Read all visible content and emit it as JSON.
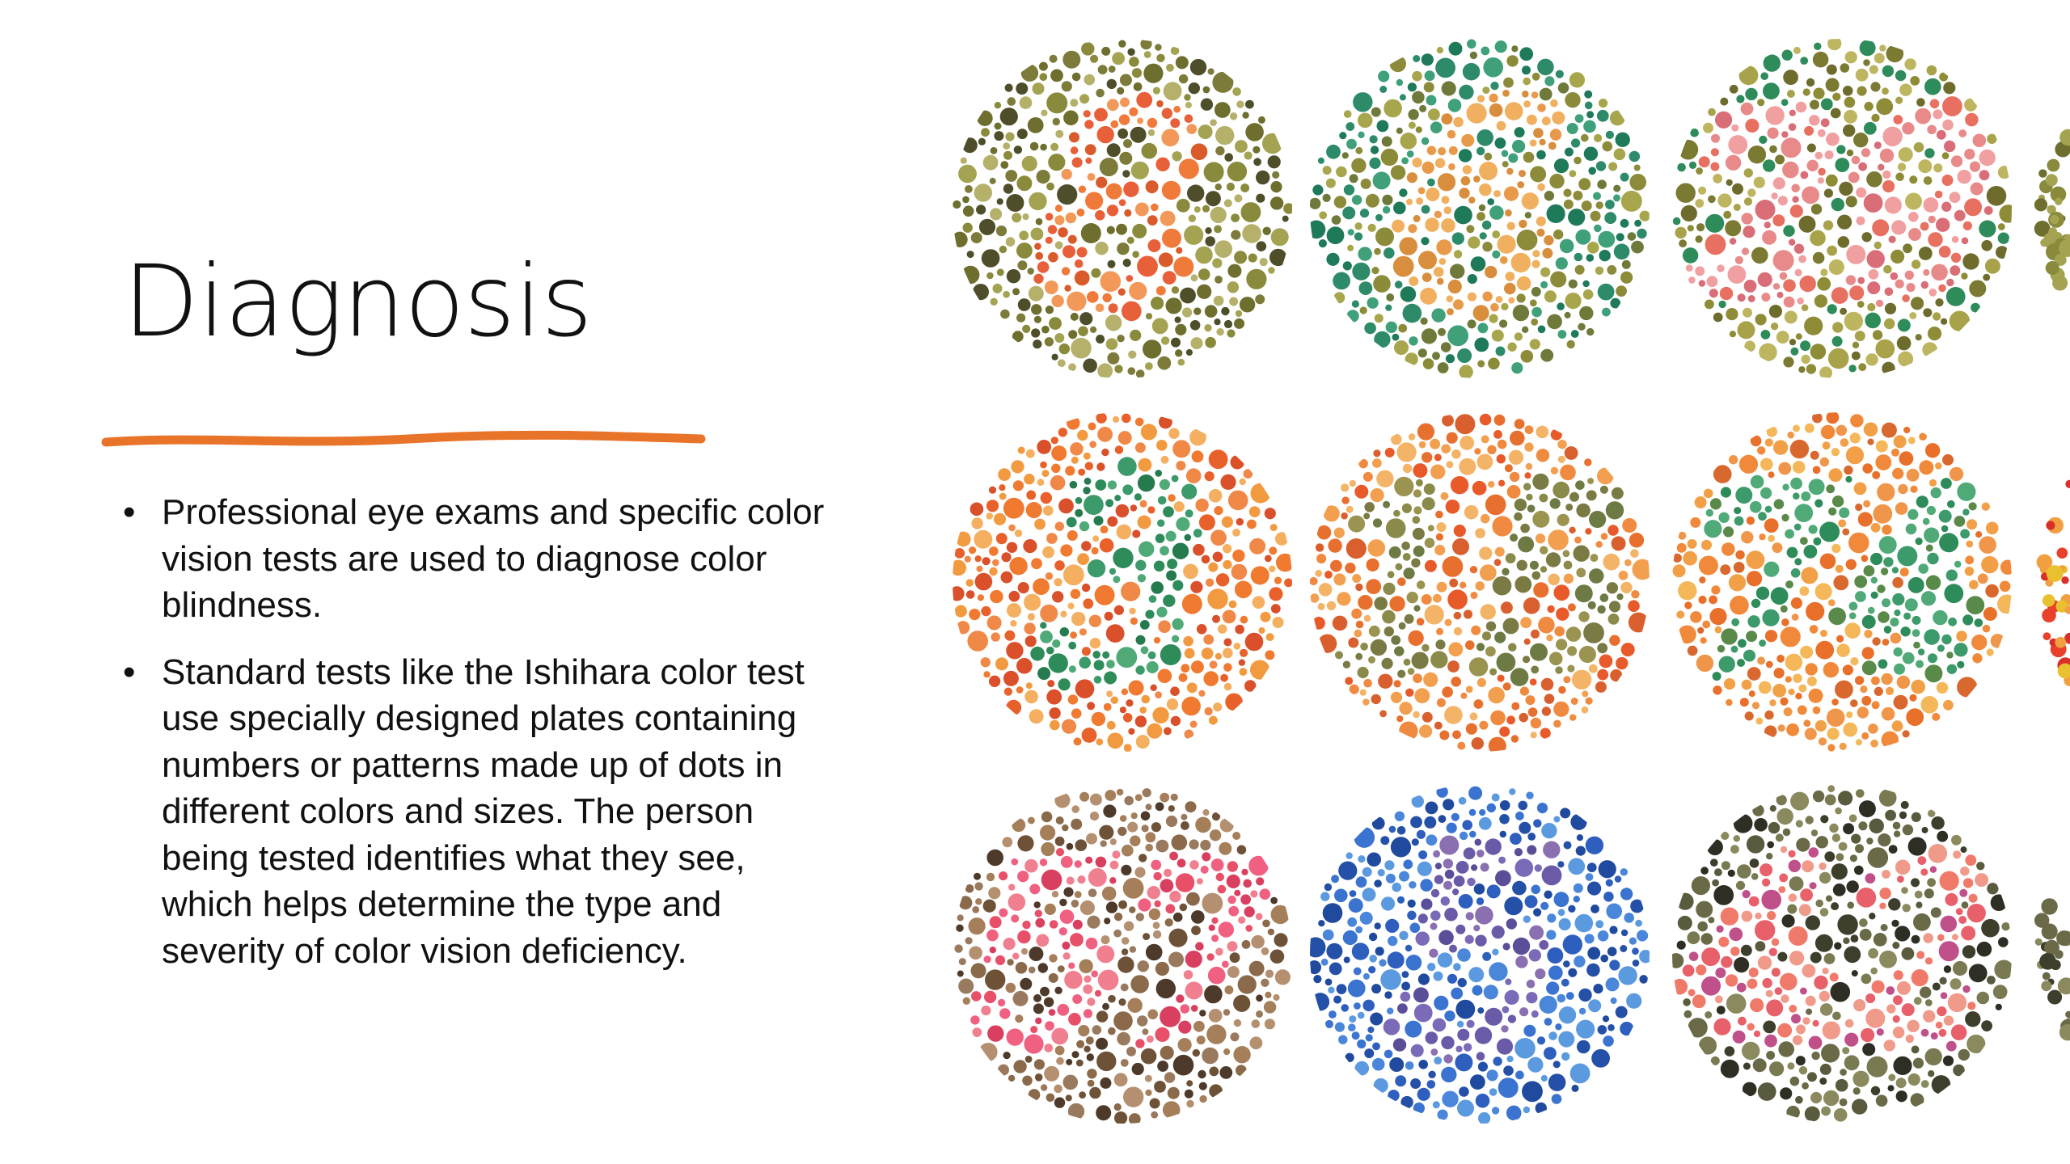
{
  "slide": {
    "title": "Diagnosis",
    "bullets": [
      "Professional eye exams and specific color vision tests are used to diagnose color blindness.",
      "Standard tests like the Ishihara color test use specially designed plates containing numbers or patterns made up of dots in different colors and sizes. The person being tested identifies what they see, which helps determine the type and severity of color vision deficiency."
    ],
    "accent_color": "#E8742A",
    "text_color": "#111111"
  },
  "plates": [
    {
      "number": "8",
      "background": [
        "#8A8A3C",
        "#A3A352",
        "#6E6E2E",
        "#4E4E2A",
        "#B5B06A",
        "#7C7B3A"
      ],
      "figure": [
        "#F07A3A",
        "#E8603A",
        "#F2995A",
        "#D95B2B"
      ]
    },
    {
      "number": "6",
      "background": [
        "#8C8B3A",
        "#A7A64C",
        "#6F7A3A",
        "#2E8B6A",
        "#1F7A5A",
        "#3FA07A"
      ],
      "figure": [
        "#E89A4A",
        "#F0B060",
        "#D98E3E"
      ]
    },
    {
      "number": "29",
      "background": [
        "#8E8C36",
        "#A8A34A",
        "#6E6C2C",
        "#BDB560",
        "#7A7A32",
        "#2E8B5A"
      ],
      "figure": [
        "#E88A8A",
        "#F0A0A0",
        "#D96E78",
        "#E87060"
      ]
    },
    {
      "number": "3",
      "background": [
        "#F07A30",
        "#E8602A",
        "#F29A40",
        "#F4B060",
        "#D9502A",
        "#F08848"
      ],
      "figure": [
        "#2E8B5A",
        "#3D9A6A",
        "#257A4E",
        "#4FAA78"
      ]
    },
    {
      "number": "15",
      "background": [
        "#F08A40",
        "#E8702E",
        "#F2A050",
        "#E85A2A",
        "#F4B468",
        "#D9602E"
      ],
      "figure": [
        "#8A8A4A",
        "#7A7A44",
        "#6E7A44",
        "#9A9450"
      ]
    },
    {
      "number": "74",
      "background": [
        "#F08A3A",
        "#E8702A",
        "#F2A048",
        "#F4B85A",
        "#D9682E",
        "#F0964A"
      ],
      "figure": [
        "#2E8B5A",
        "#3D9A6A",
        "#5A8A4A",
        "#4FAA78"
      ]
    },
    {
      "number": "57",
      "background": [
        "#8A6A4A",
        "#A57E5A",
        "#6E5238",
        "#B59070",
        "#4E3A2A",
        "#9A7A5E"
      ],
      "figure": [
        "#E8506A",
        "#F06080",
        "#D94060",
        "#F08090"
      ]
    },
    {
      "number": "5",
      "background": [
        "#2E5FBF",
        "#3A74D0",
        "#2450A8",
        "#4A86DA",
        "#5C9AE0",
        "#1F4A9E"
      ],
      "figure": [
        "#6A5AA8",
        "#7A6AB8",
        "#5A4E98",
        "#8A70B0"
      ]
    },
    {
      "number": "42",
      "background": [
        "#5A5A3E",
        "#3E3E2C",
        "#7A7A52",
        "#2E2E24",
        "#6A6A48",
        "#8A8A5E"
      ],
      "figure": [
        "#F07A6A",
        "#E8606A",
        "#C0508A",
        "#F09A8A"
      ]
    }
  ]
}
